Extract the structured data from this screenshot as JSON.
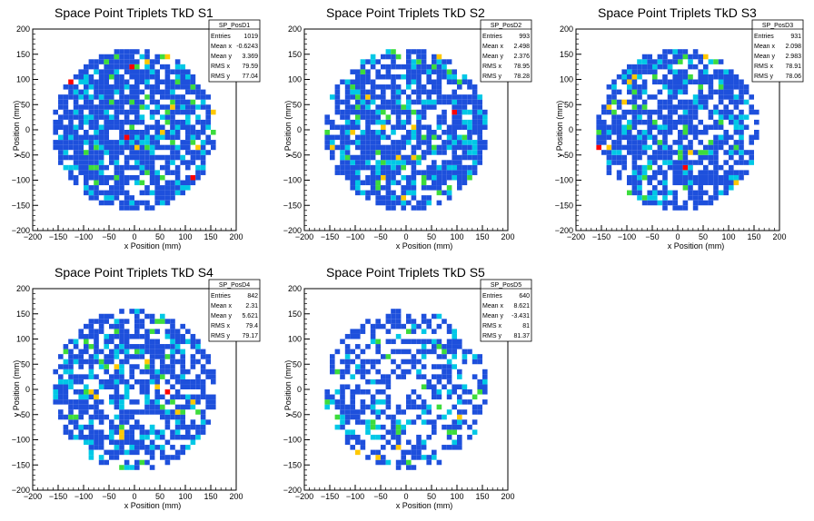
{
  "chart_data": [
    {
      "type": "heatmap",
      "title": "Space Point Triplets TkD S1",
      "xlabel": "x Position (mm)",
      "ylabel": "y Position (mm)",
      "xlim": [
        -200,
        200
      ],
      "ylim": [
        -200,
        200
      ],
      "x_ticks": [
        "−200",
        "−150",
        "−100",
        "−50",
        "0",
        "50",
        "100",
        "150",
        "200"
      ],
      "y_ticks": [
        "−200",
        "−150",
        "−100",
        "−50",
        "0",
        "50",
        "100",
        "150",
        "200"
      ],
      "stats": {
        "name": "SP_PosD1",
        "rows": [
          [
            "Entries",
            "1019"
          ],
          [
            "Mean x",
            "-0.6243"
          ],
          [
            "Mean y",
            "3.369"
          ],
          [
            "RMS x",
            "79.59"
          ],
          [
            "RMS y",
            "77.04"
          ]
        ]
      },
      "entries": 1019,
      "radius": 160,
      "seed": 11
    },
    {
      "type": "heatmap",
      "title": "Space Point Triplets TkD S2",
      "xlabel": "x Position (mm)",
      "ylabel": "y Position (mm)",
      "xlim": [
        -200,
        200
      ],
      "ylim": [
        -200,
        200
      ],
      "x_ticks": [
        "−200",
        "−150",
        "−100",
        "−50",
        "0",
        "50",
        "100",
        "150",
        "200"
      ],
      "y_ticks": [
        "−200",
        "−150",
        "−100",
        "−50",
        "0",
        "50",
        "100",
        "150",
        "200"
      ],
      "stats": {
        "name": "SP_PosD2",
        "rows": [
          [
            "Entries",
            "993"
          ],
          [
            "Mean x",
            "2.498"
          ],
          [
            "Mean y",
            "2.376"
          ],
          [
            "RMS x",
            "78.95"
          ],
          [
            "RMS y",
            "78.28"
          ]
        ]
      },
      "entries": 993,
      "radius": 160,
      "seed": 23
    },
    {
      "type": "heatmap",
      "title": "Space Point Triplets TkD S3",
      "xlabel": "x Position (mm)",
      "ylabel": "y Position (mm)",
      "xlim": [
        -200,
        200
      ],
      "ylim": [
        -200,
        200
      ],
      "x_ticks": [
        "−200",
        "−150",
        "−100",
        "−50",
        "0",
        "50",
        "100",
        "150",
        "200"
      ],
      "y_ticks": [
        "−200",
        "−150",
        "−100",
        "−50",
        "0",
        "50",
        "100",
        "150",
        "200"
      ],
      "stats": {
        "name": "SP_PosD3",
        "rows": [
          [
            "Entries",
            "931"
          ],
          [
            "Mean x",
            "2.098"
          ],
          [
            "Mean y",
            "2.983"
          ],
          [
            "RMS x",
            "78.91"
          ],
          [
            "RMS y",
            "78.06"
          ]
        ]
      },
      "entries": 931,
      "radius": 160,
      "seed": 37
    },
    {
      "type": "heatmap",
      "title": "Space Point Triplets TkD S4",
      "xlabel": "x Position (mm)",
      "ylabel": "y Position (mm)",
      "xlim": [
        -200,
        200
      ],
      "ylim": [
        -200,
        200
      ],
      "x_ticks": [
        "−200",
        "−150",
        "−100",
        "−50",
        "0",
        "50",
        "100",
        "150",
        "200"
      ],
      "y_ticks": [
        "−200",
        "−150",
        "−100",
        "−50",
        "0",
        "50",
        "100",
        "150",
        "200"
      ],
      "stats": {
        "name": "SP_PosD4",
        "rows": [
          [
            "Entries",
            "842"
          ],
          [
            "Mean x",
            "2.31"
          ],
          [
            "Mean y",
            "5.621"
          ],
          [
            "RMS x",
            "79.4"
          ],
          [
            "RMS y",
            "79.17"
          ]
        ]
      },
      "entries": 842,
      "radius": 160,
      "seed": 41
    },
    {
      "type": "heatmap",
      "title": "Space Point Triplets TkD S5",
      "xlabel": "x Position (mm)",
      "ylabel": "y Position (mm)",
      "xlim": [
        -200,
        200
      ],
      "ylim": [
        -200,
        200
      ],
      "x_ticks": [
        "−200",
        "−150",
        "−100",
        "−50",
        "0",
        "50",
        "100",
        "150",
        "200"
      ],
      "y_ticks": [
        "−200",
        "−150",
        "−100",
        "−50",
        "0",
        "50",
        "100",
        "150",
        "200"
      ],
      "stats": {
        "name": "SP_PosD5",
        "rows": [
          [
            "Entries",
            "640"
          ],
          [
            "Mean x",
            "8.621"
          ],
          [
            "Mean y",
            "-3.431"
          ],
          [
            "RMS x",
            "81"
          ],
          [
            "RMS y",
            "81.37"
          ]
        ]
      },
      "entries": 640,
      "radius": 160,
      "seed": 53
    }
  ],
  "colors": {
    "palette": [
      "#1e50dc",
      "#00c8e6",
      "#3cdc3c",
      "#ffc800",
      "#ff0000"
    ],
    "axis": "#000000",
    "background": "#ffffff"
  }
}
